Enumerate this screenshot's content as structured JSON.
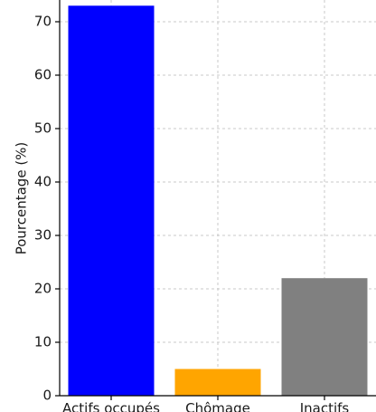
{
  "chart_data": {
    "type": "bar",
    "categories": [
      "Actifs occupés",
      "Chômage",
      "Inactifs"
    ],
    "values": [
      73,
      5,
      22
    ],
    "colors": [
      "#0000ff",
      "#ffa500",
      "#808080"
    ],
    "ylabel": "Pourcentage (%)",
    "xlabel": "",
    "title": "",
    "ylim": [
      0,
      75
    ],
    "yticks": [
      0,
      10,
      20,
      30,
      40,
      50,
      60,
      70
    ],
    "grid": true
  }
}
